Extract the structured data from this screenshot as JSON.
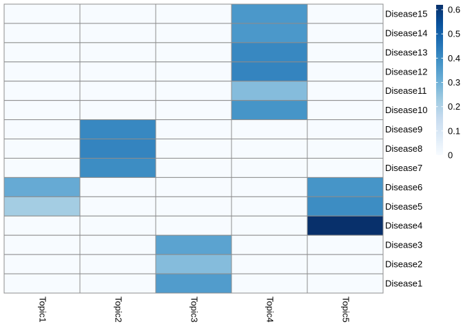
{
  "chart_data": {
    "type": "heatmap",
    "title": "",
    "xlabel": "",
    "ylabel": "",
    "columns": [
      "Topic1",
      "Topic2",
      "Topic3",
      "Topic4",
      "Topic5"
    ],
    "rows": [
      "Disease15",
      "Disease14",
      "Disease13",
      "Disease12",
      "Disease11",
      "Disease10",
      "Disease9",
      "Disease8",
      "Disease7",
      "Disease6",
      "Disease5",
      "Disease4",
      "Disease3",
      "Disease2",
      "Disease1"
    ],
    "values": [
      [
        0,
        0,
        0,
        0.37,
        0
      ],
      [
        0,
        0,
        0,
        0.37,
        0
      ],
      [
        0,
        0,
        0,
        0.41,
        0
      ],
      [
        0,
        0,
        0,
        0.42,
        0
      ],
      [
        0,
        0,
        0,
        0.27,
        0
      ],
      [
        0,
        0,
        0,
        0.38,
        0
      ],
      [
        0,
        0.41,
        0,
        0,
        0
      ],
      [
        0,
        0.42,
        0,
        0,
        0
      ],
      [
        0,
        0.4,
        0,
        0,
        0
      ],
      [
        0.32,
        0,
        0,
        0,
        0.38
      ],
      [
        0.22,
        0,
        0,
        0,
        0.4
      ],
      [
        0,
        0,
        0,
        0,
        0.62
      ],
      [
        0,
        0,
        0.34,
        0,
        0
      ],
      [
        0,
        0,
        0.27,
        0,
        0
      ],
      [
        0,
        0,
        0.36,
        0,
        0
      ]
    ],
    "legend": {
      "position": "right",
      "range": [
        0,
        0.62
      ],
      "ticks": [
        "0",
        "0.1",
        "0.2",
        "0.3",
        "0.4",
        "0.5",
        "0.6"
      ],
      "colors": [
        "#f7fbff",
        "#deebf7",
        "#c6dbef",
        "#9ecae1",
        "#6baed6",
        "#4292c6",
        "#2171b5",
        "#08519c",
        "#08306b"
      ]
    },
    "grid": true,
    "cell_border_color": "#8c8c8c"
  }
}
